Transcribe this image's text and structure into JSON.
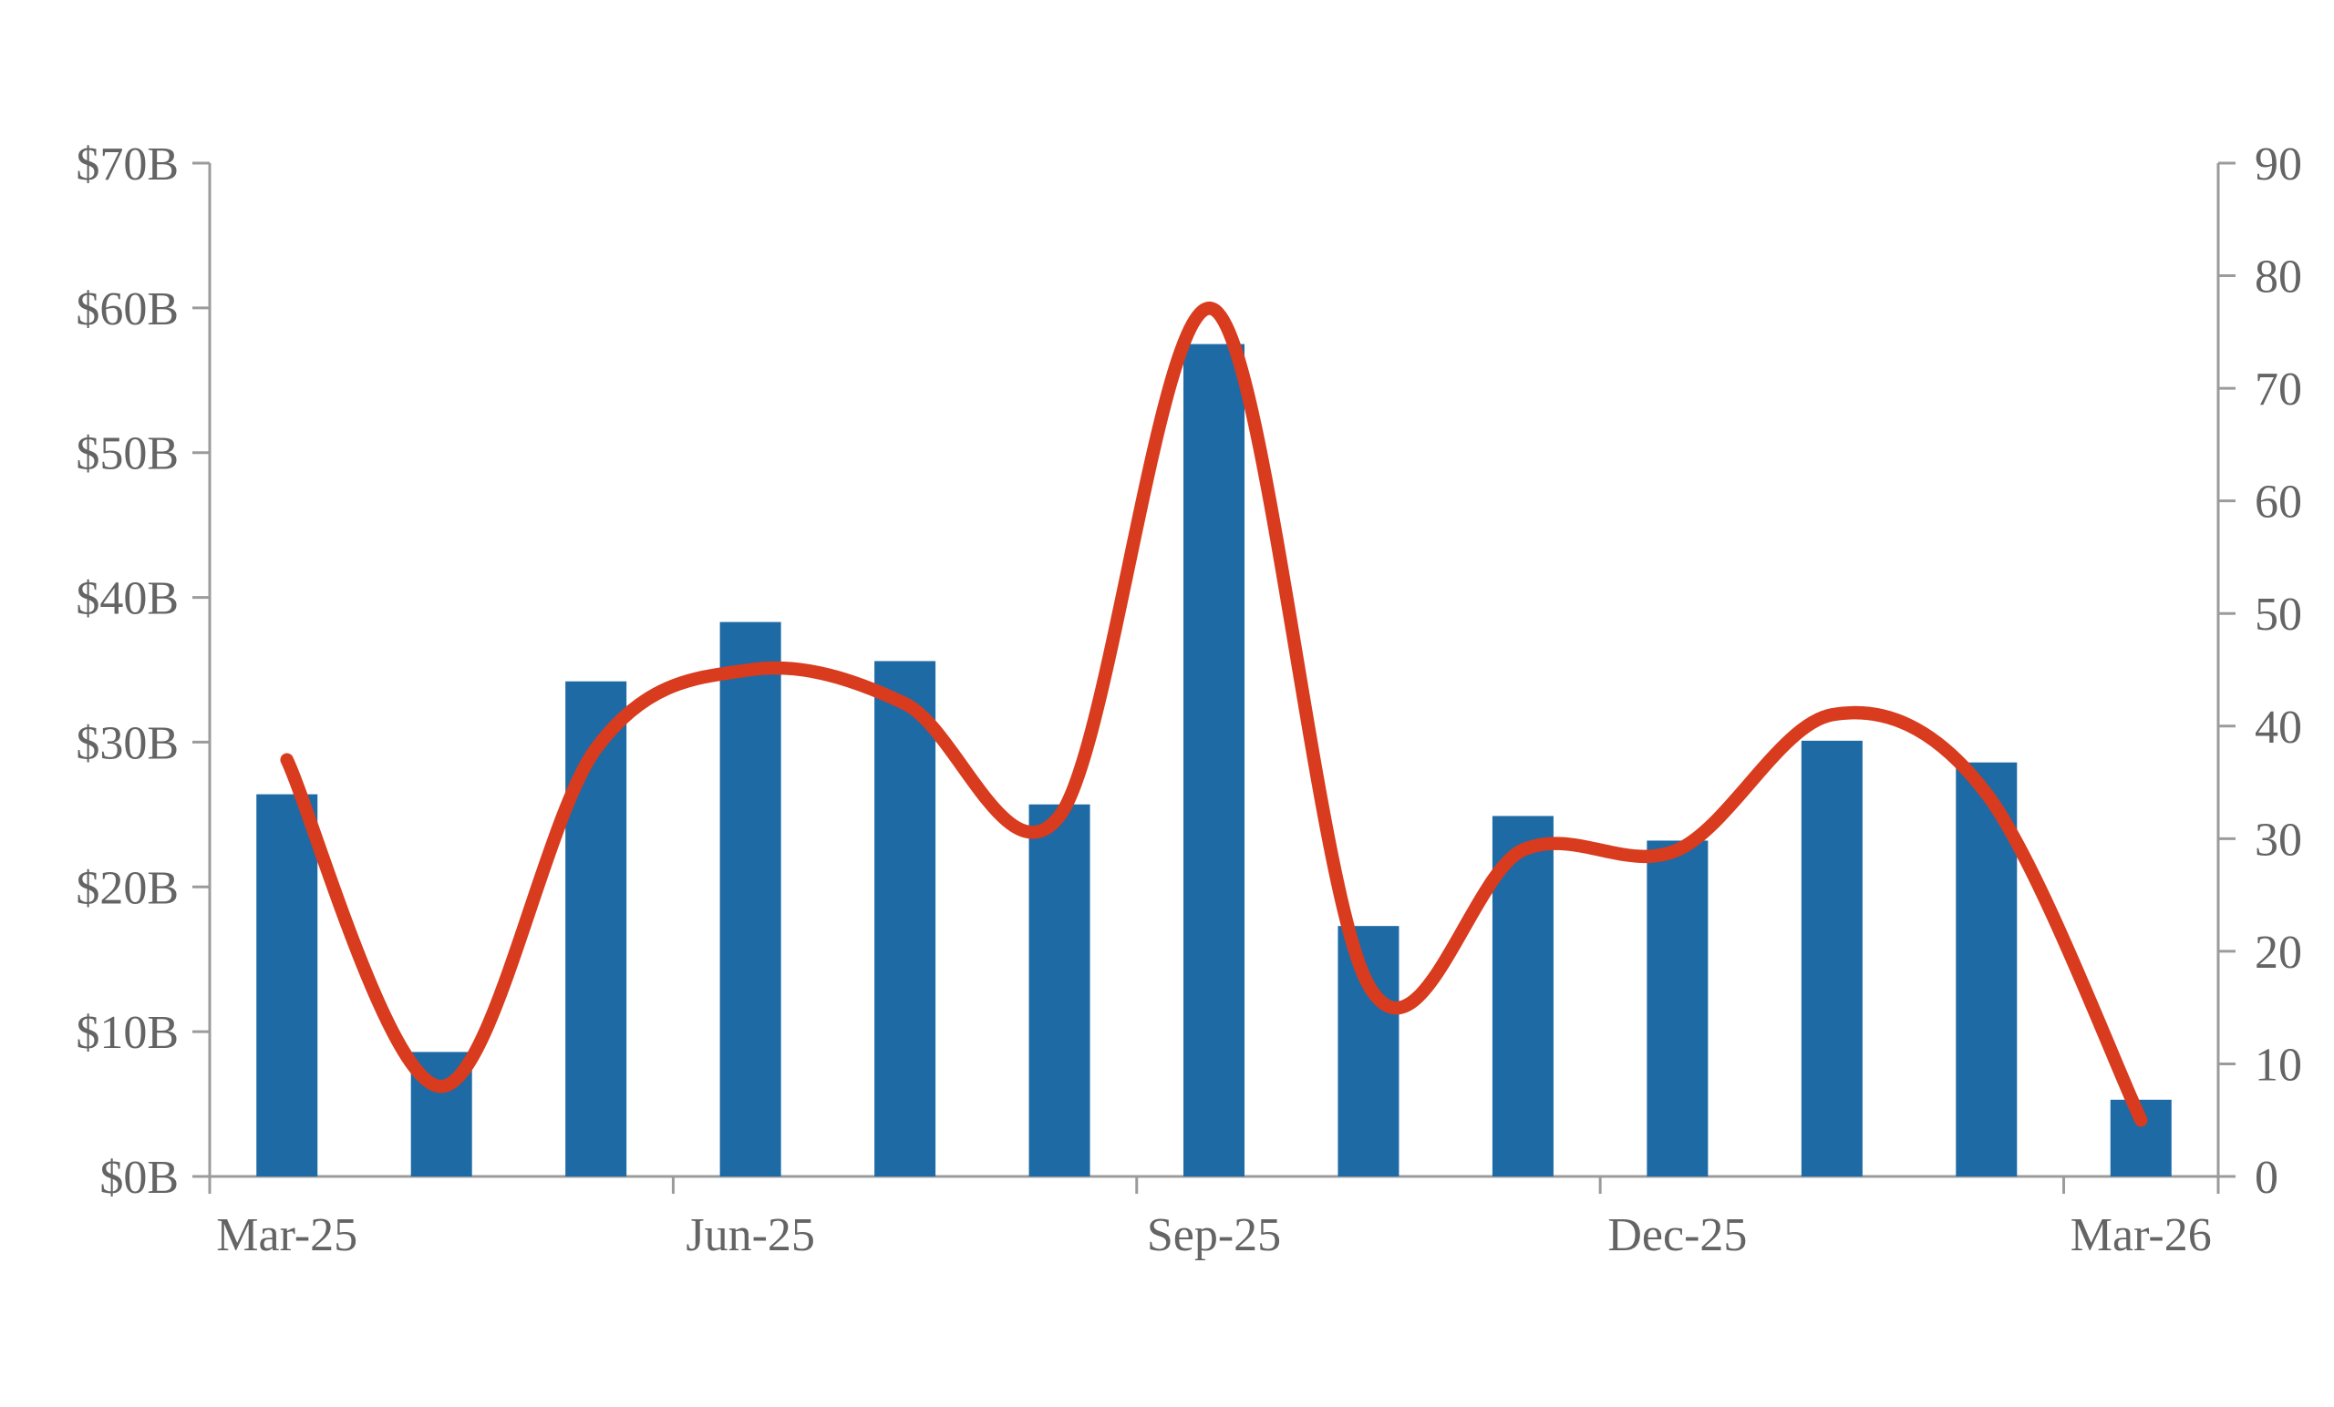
{
  "chart_data": {
    "type": "combo",
    "title": "",
    "subtitle": "",
    "legend": false,
    "grid": false,
    "background_color": "#FFFFFF",
    "categories": [
      "Mar-25",
      "Apr-25",
      "May-25",
      "Jun-25",
      "Jul-25",
      "Aug-25",
      "Sep-25",
      "Oct-25",
      "Nov-25",
      "Dec-25",
      "Jan-26",
      "Feb-26",
      "Mar-26"
    ],
    "series": [
      {
        "name": "bar-series",
        "type": "bar",
        "axis": "left",
        "unit": "USD billions",
        "color": "#1E6AA5",
        "values": [
          26.4,
          8.6,
          34.2,
          38.3,
          35.6,
          25.7,
          57.5,
          17.3,
          24.9,
          23.2,
          30.1,
          28.6,
          5.3
        ]
      },
      {
        "name": "line-series",
        "type": "line",
        "axis": "right",
        "unit": "count",
        "color": "#D93B1E",
        "smooth": true,
        "values": [
          37,
          8,
          38,
          45,
          42,
          32,
          77,
          17,
          29,
          29,
          41,
          34,
          5
        ]
      }
    ],
    "left_axis": {
      "min": 0,
      "max": 70,
      "step": 10,
      "tick_labels": [
        "$0B",
        "$10B",
        "$20B",
        "$30B",
        "$40B",
        "$50B",
        "$60B",
        "$70B"
      ]
    },
    "right_axis": {
      "min": 0,
      "max": 90,
      "step": 10,
      "tick_labels": [
        "0",
        "10",
        "20",
        "30",
        "40",
        "50",
        "60",
        "70",
        "80",
        "90"
      ]
    },
    "x_axis": {
      "visible_labels": [
        {
          "label": "Mar-25",
          "category_index": 0
        },
        {
          "label": "Jun-25",
          "category_index": 3
        },
        {
          "label": "Sep-25",
          "category_index": 6
        },
        {
          "label": "Dec-25",
          "category_index": 9
        },
        {
          "label": "Mar-26",
          "category_index": 12
        }
      ],
      "tick_boundary_indices": [
        0,
        3,
        6,
        9,
        12,
        13
      ]
    },
    "colors": {
      "bar": "#1E6AA5",
      "line": "#D93B1E",
      "text": "#646464",
      "axis": "#9B9B9B"
    }
  }
}
